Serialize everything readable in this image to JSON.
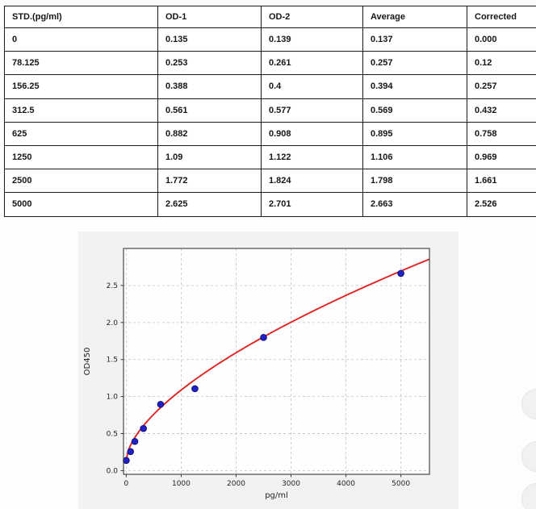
{
  "table": {
    "headers": [
      "STD.(pg/ml)",
      "OD-1",
      "OD-2",
      "Average",
      "Corrected"
    ],
    "rows": [
      [
        "0",
        "0.135",
        "0.139",
        "0.137",
        "0.000"
      ],
      [
        "78.125",
        "0.253",
        "0.261",
        "0.257",
        "0.12"
      ],
      [
        "156.25",
        "0.388",
        "0.4",
        "0.394",
        "0.257"
      ],
      [
        "312.5",
        "0.561",
        "0.577",
        "0.569",
        "0.432"
      ],
      [
        "625",
        "0.882",
        "0.908",
        "0.895",
        "0.758"
      ],
      [
        "1250",
        "1.09",
        "1.122",
        "1.106",
        "0.969"
      ],
      [
        "2500",
        "1.772",
        "1.824",
        "1.798",
        "1.661"
      ],
      [
        "5000",
        "2.625",
        "2.701",
        "2.663",
        "2.526"
      ]
    ]
  },
  "chart_data": {
    "type": "scatter",
    "title": "",
    "xlabel": "pg/ml",
    "ylabel": "OD450",
    "x": [
      0,
      78.125,
      156.25,
      312.5,
      625,
      1250,
      2500,
      5000
    ],
    "y": [
      0.137,
      0.257,
      0.394,
      0.569,
      0.895,
      1.106,
      1.798,
      2.663
    ],
    "fit_curve": {
      "type": "power",
      "formula": "y = 0.15 + 0.01295 * x^0.62",
      "y0": 0.15,
      "k": 0.01295,
      "exp": 0.62,
      "x_start": 0,
      "x_end": 5520
    },
    "x_ticks": [
      0,
      1000,
      2000,
      3000,
      4000,
      5000
    ],
    "y_ticks": [
      0.0,
      0.5,
      1.0,
      1.5,
      2.0,
      2.5
    ],
    "xlim": [
      -50,
      5520
    ],
    "ylim": [
      -0.05,
      3.0
    ],
    "grid": true,
    "grid_style": "dashed",
    "legend": "none",
    "colors": {
      "point_fill": "#2121cb",
      "point_edge": "#10106e",
      "curve": "#e02424",
      "plot_bg": "#fefefe",
      "figure_bg": "#f2f2f1",
      "grid": "#c9c9c9",
      "spine": "#3a3a3a",
      "tick_text": "#222222"
    }
  }
}
